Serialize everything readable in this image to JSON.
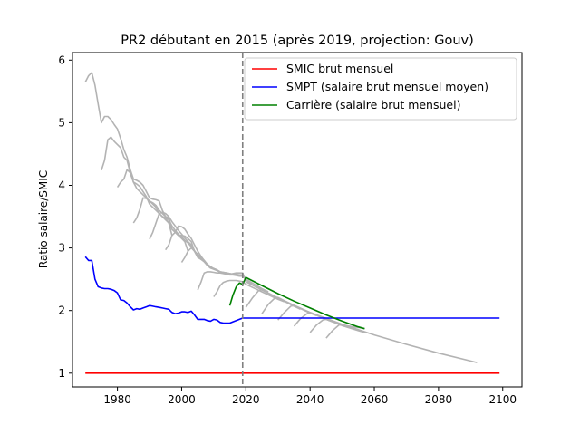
{
  "chart_data": {
    "type": "line",
    "title": "PR2 débutant en 2015  (après 2019, projection: Gouv)",
    "xlabel": "",
    "ylabel": "Ratio salaire/SMIC",
    "xlim": [
      1966,
      2106
    ],
    "ylim": [
      0.78,
      6.12
    ],
    "x_ticks": [
      1980,
      2000,
      2020,
      2040,
      2060,
      2080,
      2100
    ],
    "y_ticks": [
      1,
      2,
      3,
      4,
      5,
      6
    ],
    "grid": false,
    "legend_position": "top-right",
    "vline": {
      "x": 2019,
      "style": "dashed",
      "color": "#808080"
    },
    "series": [
      {
        "name": "SMIC brut mensuel",
        "color": "#ff0000",
        "x": [
          1970,
          2099
        ],
        "y": [
          1.0,
          1.0
        ]
      },
      {
        "name": "SMPT (salaire brut mensuel moyen)",
        "color": "#0000ff",
        "x": [
          1970,
          1971,
          1972,
          1973,
          1974,
          1975,
          1976,
          1977,
          1978,
          1979,
          1980,
          1981,
          1982,
          1983,
          1984,
          1985,
          1986,
          1987,
          1988,
          1989,
          1990,
          1991,
          1992,
          1993,
          1994,
          1995,
          1996,
          1997,
          1998,
          1999,
          2000,
          2001,
          2002,
          2003,
          2004,
          2005,
          2006,
          2007,
          2008,
          2009,
          2010,
          2011,
          2012,
          2013,
          2014,
          2015,
          2016,
          2017,
          2018,
          2019,
          2099
        ],
        "y": [
          2.86,
          2.8,
          2.8,
          2.5,
          2.38,
          2.36,
          2.35,
          2.35,
          2.34,
          2.32,
          2.28,
          2.17,
          2.16,
          2.12,
          2.06,
          2.01,
          2.03,
          2.02,
          2.04,
          2.06,
          2.08,
          2.07,
          2.06,
          2.05,
          2.04,
          2.03,
          2.02,
          1.97,
          1.95,
          1.96,
          1.98,
          1.98,
          1.97,
          1.99,
          1.93,
          1.86,
          1.86,
          1.86,
          1.84,
          1.83,
          1.86,
          1.85,
          1.81,
          1.8,
          1.8,
          1.8,
          1.82,
          1.84,
          1.86,
          1.88,
          1.88
        ]
      },
      {
        "name": "Carrière (salaire brut mensuel)",
        "color": "#008000",
        "x": [
          2015,
          2016,
          2017,
          2018,
          2019,
          2020,
          2025,
          2030,
          2035,
          2040,
          2045,
          2050,
          2055,
          2057
        ],
        "y": [
          2.08,
          2.25,
          2.38,
          2.44,
          2.42,
          2.53,
          2.4,
          2.27,
          2.15,
          2.04,
          1.93,
          1.83,
          1.74,
          1.71
        ]
      }
    ],
    "grey_careers": [
      {
        "x": [
          1970,
          1971,
          1972,
          1973,
          1974,
          1975,
          1976,
          1977,
          1978,
          1979,
          1980,
          1981,
          1982,
          1983,
          1984,
          1985,
          1986,
          1987,
          1988,
          1989,
          1990,
          1991,
          1992,
          1993,
          1994,
          1995,
          1996,
          1997,
          1998,
          1999,
          2000,
          2001,
          2002,
          2003,
          2004,
          2005,
          2006,
          2007,
          2008,
          2009,
          2010,
          2011,
          2012,
          2013,
          2014,
          2015,
          2016,
          2017,
          2018,
          2019,
          2020,
          2030,
          2040,
          2050,
          2060,
          2070,
          2080,
          2092
        ],
        "y": [
          5.65,
          5.75,
          5.8,
          5.6,
          5.3,
          5.0,
          5.1,
          5.1,
          5.05,
          4.97,
          4.9,
          4.75,
          4.57,
          4.45,
          4.25,
          4.1,
          4.08,
          4.05,
          4.0,
          3.9,
          3.8,
          3.78,
          3.77,
          3.75,
          3.6,
          3.5,
          3.48,
          3.3,
          3.25,
          3.2,
          3.2,
          3.19,
          3.15,
          3.1,
          2.95,
          2.85,
          2.82,
          2.8,
          2.72,
          2.68,
          2.67,
          2.65,
          2.6,
          2.6,
          2.59,
          2.58,
          2.59,
          2.6,
          2.6,
          2.6,
          2.46,
          2.2,
          1.97,
          1.78,
          1.61,
          1.46,
          1.32,
          1.17
        ]
      },
      {
        "x": [
          1975,
          1976,
          1977,
          1978,
          1979,
          1980,
          1981,
          1982,
          1983,
          1984,
          1985,
          1986,
          1987,
          1988,
          1989,
          1990,
          1991,
          1992,
          1993,
          1994,
          1995,
          1996,
          1997
        ],
        "y": [
          4.24,
          4.4,
          4.73,
          4.77,
          4.7,
          4.65,
          4.6,
          4.45,
          4.4,
          4.2,
          4.05,
          4.02,
          3.98,
          3.9,
          3.82,
          3.7,
          3.65,
          3.6,
          3.55,
          3.5,
          3.45,
          3.4,
          3.2
        ]
      },
      {
        "x": [
          1980,
          1981,
          1982,
          1983,
          1984,
          1985,
          1986,
          1987,
          1988,
          1989,
          1990,
          1991,
          1992,
          1993,
          1994,
          1995,
          1996,
          1997,
          1998,
          1999,
          2000,
          2001,
          2002
        ],
        "y": [
          3.97,
          4.05,
          4.1,
          4.25,
          4.2,
          4.05,
          3.95,
          3.9,
          3.85,
          3.8,
          3.75,
          3.7,
          3.65,
          3.55,
          3.5,
          3.48,
          3.4,
          3.3,
          3.25,
          3.2,
          3.15,
          3.1,
          2.95
        ]
      },
      {
        "x": [
          1985,
          1986,
          1987,
          1988,
          1989,
          1990,
          1991,
          1992,
          1993,
          1994,
          1995,
          1996,
          1997,
          1998,
          1999,
          2000,
          2001,
          2002,
          2003,
          2004,
          2005,
          2006,
          2007
        ],
        "y": [
          3.4,
          3.48,
          3.62,
          3.8,
          3.79,
          3.75,
          3.72,
          3.68,
          3.6,
          3.55,
          3.5,
          3.45,
          3.35,
          3.28,
          3.22,
          3.18,
          3.12,
          3.08,
          3.02,
          2.95,
          2.86,
          2.82,
          2.78
        ]
      },
      {
        "x": [
          1990,
          1991,
          1992,
          1993,
          1994,
          1995,
          1996,
          1997,
          1998,
          1999,
          2000,
          2001,
          2002,
          2003,
          2004,
          2005,
          2006,
          2007,
          2008,
          2009,
          2010,
          2011,
          2012
        ],
        "y": [
          3.14,
          3.25,
          3.4,
          3.55,
          3.57,
          3.55,
          3.5,
          3.42,
          3.35,
          3.28,
          3.22,
          3.16,
          3.1,
          3.05,
          2.96,
          2.88,
          2.82,
          2.78,
          2.72,
          2.68,
          2.66,
          2.64,
          2.62
        ]
      },
      {
        "x": [
          1995,
          1996,
          1997,
          1998,
          1999,
          2000,
          2001,
          2002,
          2003,
          2004,
          2005,
          2006,
          2007,
          2008,
          2009,
          2010,
          2011,
          2012,
          2013,
          2014,
          2015,
          2016,
          2017
        ],
        "y": [
          2.97,
          3.05,
          3.2,
          3.25,
          3.35,
          3.34,
          3.3,
          3.22,
          3.15,
          3.05,
          2.95,
          2.87,
          2.8,
          2.74,
          2.7,
          2.67,
          2.65,
          2.62,
          2.61,
          2.6,
          2.59,
          2.58,
          2.57
        ]
      },
      {
        "x": [
          2000,
          2001,
          2002,
          2003,
          2004,
          2005,
          2006,
          2007,
          2008,
          2009,
          2010,
          2011,
          2012,
          2013,
          2014,
          2015,
          2016,
          2017,
          2018,
          2019,
          2020,
          2021,
          2022
        ],
        "y": [
          2.77,
          2.85,
          2.95,
          3.0,
          2.95,
          2.9,
          2.85,
          2.8,
          2.74,
          2.7,
          2.67,
          2.65,
          2.62,
          2.61,
          2.6,
          2.59,
          2.58,
          2.58,
          2.57,
          2.57,
          2.5,
          2.45,
          2.42
        ]
      },
      {
        "x": [
          2005,
          2006,
          2007,
          2008,
          2009,
          2010,
          2011,
          2012,
          2013,
          2014,
          2015,
          2016,
          2017,
          2018,
          2019,
          2020,
          2025,
          2027
        ],
        "y": [
          2.33,
          2.45,
          2.6,
          2.62,
          2.62,
          2.61,
          2.6,
          2.6,
          2.59,
          2.58,
          2.57,
          2.57,
          2.56,
          2.55,
          2.55,
          2.5,
          2.35,
          2.3
        ]
      },
      {
        "x": [
          2010,
          2011,
          2012,
          2013,
          2014,
          2015,
          2016,
          2017,
          2018,
          2019,
          2020,
          2025,
          2030,
          2032
        ],
        "y": [
          2.22,
          2.3,
          2.4,
          2.45,
          2.47,
          2.48,
          2.48,
          2.48,
          2.47,
          2.46,
          2.42,
          2.3,
          2.18,
          2.14
        ]
      },
      {
        "x": [
          2020,
          2022,
          2024,
          2025,
          2030,
          2035,
          2037
        ],
        "y": [
          2.05,
          2.2,
          2.32,
          2.33,
          2.2,
          2.07,
          2.02
        ]
      },
      {
        "x": [
          2025,
          2027,
          2029,
          2030,
          2035,
          2040,
          2042
        ],
        "y": [
          1.95,
          2.1,
          2.2,
          2.21,
          2.08,
          1.96,
          1.92
        ]
      },
      {
        "x": [
          2030,
          2032,
          2034,
          2035,
          2040,
          2045,
          2047
        ],
        "y": [
          1.85,
          1.97,
          2.07,
          2.08,
          1.97,
          1.86,
          1.82
        ]
      },
      {
        "x": [
          2035,
          2037,
          2039,
          2040,
          2045,
          2050,
          2052
        ],
        "y": [
          1.75,
          1.87,
          1.95,
          1.97,
          1.86,
          1.77,
          1.73
        ]
      },
      {
        "x": [
          2040,
          2042,
          2044,
          2045,
          2050,
          2055,
          2057
        ],
        "y": [
          1.65,
          1.77,
          1.85,
          1.86,
          1.76,
          1.68,
          1.65
        ]
      },
      {
        "x": [
          2045,
          2047,
          2049,
          2050,
          2055,
          2057
        ],
        "y": [
          1.56,
          1.68,
          1.77,
          1.77,
          1.73,
          1.71
        ]
      }
    ]
  }
}
